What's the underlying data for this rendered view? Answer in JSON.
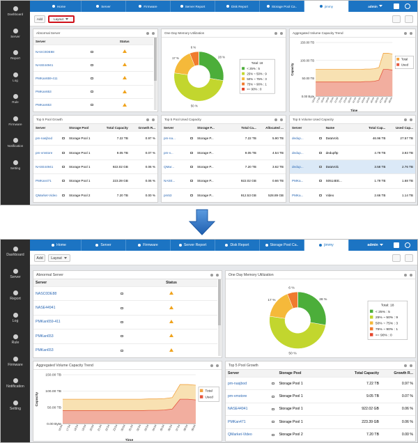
{
  "sidebar": [
    "Dashboard",
    "Server",
    "Report",
    "Log",
    "Rule",
    "Firmware",
    "Notification",
    "Setting"
  ],
  "nav": {
    "tabs": [
      "Home",
      "Server",
      "Firmware",
      "Server Report",
      "Disk Report",
      "Storage Pool Ca..",
      "jimmy"
    ],
    "user": "admin"
  },
  "toolbar": {
    "add": "Add",
    "layout": "Layout"
  },
  "abnormal_server": {
    "title": "Abnormal Server",
    "columns": [
      "Server",
      "Status"
    ],
    "rows": [
      "NASC0DE88",
      "NASE44941",
      "PMKan659-411",
      "PMKan653",
      "PMKan653"
    ]
  },
  "memory": {
    "title": "One Day Memory Utilization",
    "chart_data": {
      "type": "donut",
      "legend_title": "Total: 18",
      "categories": [
        "< 25% : 5",
        "25% ~ 50% : 9",
        "50% ~ 75% : 3",
        "75% ~ 90% : 1",
        ">= 90% : 0"
      ],
      "values": [
        28,
        50,
        17,
        6,
        0
      ],
      "value_labels": [
        "28 %",
        "50 %",
        "17 %",
        "6 %",
        null
      ],
      "colors": [
        "#4cae3a",
        "#c2d62e",
        "#f5b93a",
        "#f07b2e",
        "#e5452c"
      ]
    }
  },
  "trend": {
    "title": "Aggregated Volume Capacity Trend",
    "chart_data": {
      "type": "area",
      "xlabel": "Time",
      "ylabel": "Capacity",
      "categories": [
        "16:54",
        "17:54",
        "18:54",
        "19:54",
        "20:54",
        "21:54",
        "22:54",
        "23:54",
        "00:54",
        "01:54",
        "02:54",
        "03:54",
        "04:54",
        "05:54",
        "06:54",
        "07:54",
        "08:54",
        "09:54"
      ],
      "series": [
        {
          "name": "Total",
          "color": "#f2a340",
          "fill": "#f8e1b2",
          "values": [
            75,
            75,
            75,
            75,
            75,
            75,
            75,
            75,
            75,
            75,
            75,
            76,
            76,
            77,
            80,
            120,
            120,
            118
          ]
        },
        {
          "name": "Used",
          "color": "#e4573d",
          "fill": "#f2ae9f",
          "values": [
            40,
            40,
            40,
            40,
            40,
            40,
            40,
            40,
            40,
            40,
            40,
            41,
            41,
            42,
            45,
            75,
            75,
            73
          ]
        }
      ],
      "ylim": [
        0,
        150
      ],
      "yticks": [
        {
          "value": 0,
          "label": "0.00 Byte"
        },
        {
          "value": 50,
          "label": "50.00 TB"
        },
        {
          "value": 100,
          "label": "100.00 TB"
        },
        {
          "value": 150,
          "label": "150.00 TB"
        }
      ],
      "grid": true,
      "legend": "right"
    }
  },
  "pool_growth": {
    "title": "Top 5 Pool Growth",
    "columns": [
      "Server",
      "Storage Pool",
      "Total Capacity",
      "Growth R..."
    ],
    "rows": [
      [
        "pm-nasjbod",
        "Storage Pool 1",
        "7.22 TB",
        "0.97 %"
      ],
      [
        "pm-vmstore",
        "Storage Pool 1",
        "9.05 TB",
        "0.07 %"
      ],
      [
        "NASE44941",
        "Storage Pool 1",
        "922.02 GB",
        "0.06 %"
      ],
      [
        "PMKan471",
        "Storage Pool 1",
        "223.39 GB",
        "0.06 %"
      ],
      [
        "QMarket-Video",
        "Storage Pool 2",
        "7.20 TB",
        "0.00 %"
      ]
    ]
  },
  "pool_used": {
    "title": "Top 5 Pool Used Capacity",
    "columns": [
      "Server",
      "Storage P...",
      "Total Ca...",
      "Allocated ..."
    ],
    "rows": [
      [
        "pm-na...",
        "Storage P...",
        "7.22 TB",
        "5.90 TB"
      ],
      [
        "pm-v...",
        "Storage P...",
        "9.05 TB",
        "4.54 TB"
      ],
      [
        "QMar...",
        "Storage P...",
        "7.20 TB",
        "3.62 TB"
      ],
      [
        "NASE...",
        "Storage P...",
        "922.02 GB",
        "0.66 TB"
      ],
      [
        "pm53",
        "Storage P...",
        "912.53 GB",
        "528.89 GB"
      ]
    ]
  },
  "volume_used": {
    "title": "Top 5 Volume Used Capacity",
    "columns": [
      "Server",
      "Name",
      "Total Cap...",
      "Used Cap..."
    ],
    "rows": [
      [
        "dedup...",
        "DataVol1",
        "46.96 TB",
        "27.57 TB"
      ],
      [
        "dedup...",
        "dedupftp",
        "4.79 TB",
        "3.93 TB"
      ],
      [
        "dedup...",
        "DataVol1",
        "3.58 TB",
        "2.76 TB"
      ],
      [
        "PMKa...",
        "S0514EE...",
        "1.79 TB",
        "1.68 TB"
      ],
      [
        "PMKa...",
        "Video",
        "2.66 TB",
        "1.14 TB"
      ]
    ]
  }
}
